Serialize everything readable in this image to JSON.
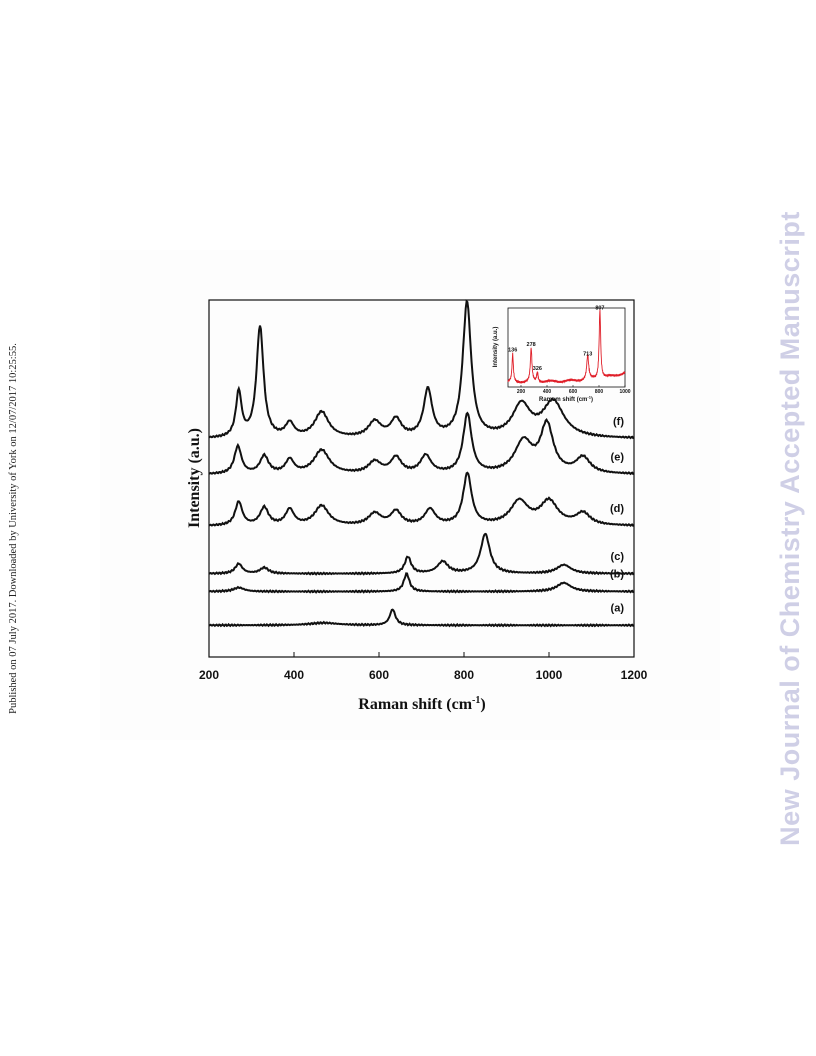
{
  "side_note": "Published on 07 July 2017. Downloaded by University of York on 12/07/2017 10:25:55.",
  "watermark": "New Journal of Chemistry Accepted Manuscript",
  "colors": {
    "main_series": "#111111",
    "inset_series": "#e0202a"
  },
  "chart_data": [
    {
      "type": "line",
      "title": "",
      "xlabel_main": "Raman shift (cm",
      "xlabel_sup": "-1",
      "xlabel_end": ")",
      "ylabel": "Intensity (a.u.)",
      "xlim": [
        200,
        1200
      ],
      "ylim": [
        0,
        9
      ],
      "x_ticks": [
        200,
        400,
        600,
        800,
        1000,
        1200
      ],
      "y_ticks_shown": false,
      "series": [
        {
          "name": "(a)",
          "baseline": 0.8,
          "peaks": [
            [
              632,
              0.4,
              8
            ],
            [
              470,
              0.06,
              40
            ]
          ]
        },
        {
          "name": "(b)",
          "baseline": 1.65,
          "peaks": [
            [
              665,
              0.45,
              8
            ],
            [
              1035,
              0.22,
              20
            ],
            [
              270,
              0.1,
              15
            ]
          ]
        },
        {
          "name": "(c)",
          "baseline": 2.1,
          "peaks": [
            [
              270,
              0.25,
              10
            ],
            [
              330,
              0.15,
              12
            ],
            [
              668,
              0.42,
              9
            ],
            [
              750,
              0.3,
              15
            ],
            [
              850,
              1.0,
              13
            ],
            [
              1035,
              0.22,
              20
            ]
          ]
        },
        {
          "name": "(d)",
          "baseline": 3.3,
          "peaks": [
            [
              270,
              0.6,
              10
            ],
            [
              330,
              0.45,
              12
            ],
            [
              390,
              0.4,
              12
            ],
            [
              465,
              0.5,
              20
            ],
            [
              590,
              0.3,
              18
            ],
            [
              640,
              0.35,
              15
            ],
            [
              720,
              0.4,
              15
            ],
            [
              808,
              1.3,
              12
            ],
            [
              930,
              0.6,
              25
            ],
            [
              1000,
              0.6,
              25
            ],
            [
              1080,
              0.3,
              20
            ]
          ]
        },
        {
          "name": "(e)",
          "baseline": 4.6,
          "peaks": [
            [
              268,
              0.7,
              10
            ],
            [
              330,
              0.45,
              12
            ],
            [
              390,
              0.35,
              12
            ],
            [
              465,
              0.6,
              22
            ],
            [
              590,
              0.3,
              18
            ],
            [
              640,
              0.4,
              15
            ],
            [
              710,
              0.45,
              15
            ],
            [
              808,
              1.5,
              12
            ],
            [
              940,
              0.8,
              25
            ],
            [
              995,
              1.2,
              18
            ],
            [
              1080,
              0.4,
              20
            ]
          ]
        },
        {
          "name": "(f)",
          "baseline": 5.5,
          "peaks": [
            [
              270,
              1.15,
              8
            ],
            [
              320,
              2.8,
              10
            ],
            [
              390,
              0.35,
              12
            ],
            [
              465,
              0.65,
              20
            ],
            [
              590,
              0.4,
              18
            ],
            [
              640,
              0.45,
              15
            ],
            [
              715,
              1.2,
              12
            ],
            [
              807,
              3.4,
              12
            ],
            [
              935,
              0.8,
              25
            ],
            [
              1010,
              0.9,
              30
            ]
          ]
        }
      ]
    },
    {
      "type": "line",
      "title": "",
      "xlabel_main": "Ramam shift (cm",
      "xlabel_sup": "-1",
      "xlabel_end": ")",
      "ylabel": "Intensity (a.u.)",
      "xlim": [
        100,
        1000
      ],
      "ylim": [
        0,
        1
      ],
      "x_ticks": [
        200,
        400,
        600,
        800,
        1000
      ],
      "annotations": [
        {
          "x": 136,
          "label": "136"
        },
        {
          "x": 278,
          "label": "278"
        },
        {
          "x": 326,
          "label": "326"
        },
        {
          "x": 713,
          "label": "713"
        },
        {
          "x": 807,
          "label": "807"
        }
      ],
      "series": [
        {
          "baseline": 0.06,
          "peaks": [
            [
              136,
              0.35,
              6
            ],
            [
              278,
              0.42,
              7
            ],
            [
              326,
              0.12,
              7
            ],
            [
              713,
              0.3,
              9
            ],
            [
              807,
              0.88,
              7
            ]
          ]
        }
      ]
    }
  ]
}
